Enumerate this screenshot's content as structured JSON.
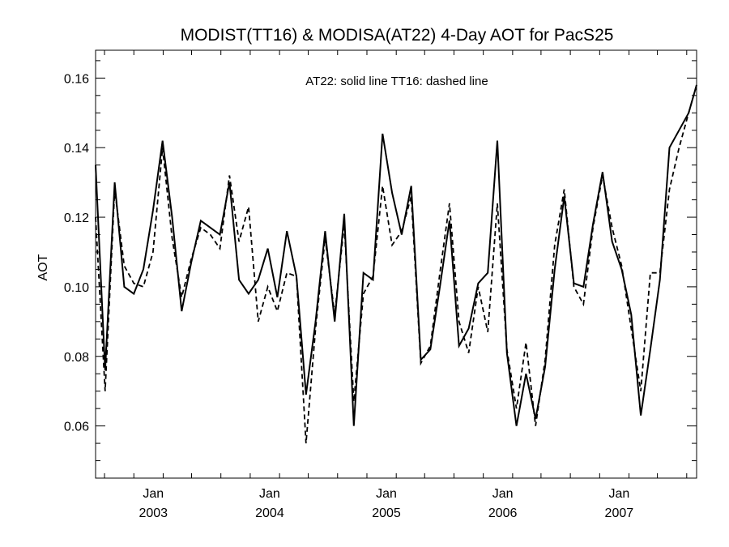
{
  "chart_data": {
    "type": "line",
    "title": "MODIST(TT16) & MODISA(AT22) 4-Day AOT for PacS25",
    "ylabel": "AOT",
    "xlabel": "",
    "annotation": "AT22: solid line   TT16: dashed line",
    "ylim": [
      0.045,
      0.168
    ],
    "xlim": [
      "2002-07-04",
      "2007-09-01"
    ],
    "y_ticks": [
      {
        "value": 0.06,
        "label": "0.06"
      },
      {
        "value": 0.08,
        "label": "0.08"
      },
      {
        "value": 0.1,
        "label": "0.10"
      },
      {
        "value": 0.12,
        "label": "0.12"
      },
      {
        "value": 0.14,
        "label": "0.14"
      },
      {
        "value": 0.16,
        "label": "0.16"
      }
    ],
    "x_ticks": [
      {
        "date": "2003-01-01",
        "month": "Jan",
        "year": "2003"
      },
      {
        "date": "2004-01-01",
        "month": "Jan",
        "year": "2004"
      },
      {
        "date": "2005-01-01",
        "month": "Jan",
        "year": "2005"
      },
      {
        "date": "2006-01-01",
        "month": "Jan",
        "year": "2006"
      },
      {
        "date": "2007-01-01",
        "month": "Jan",
        "year": "2007"
      }
    ],
    "series": [
      {
        "name": "AT22",
        "style": "solid",
        "color": "#000000",
        "x": [
          "2002-07-04",
          "2002-08-03",
          "2002-09-02",
          "2002-10-02",
          "2002-11-01",
          "2002-12-01",
          "2002-12-31",
          "2003-01-30",
          "2003-03-01",
          "2003-03-31",
          "2003-04-30",
          "2003-05-30",
          "2003-06-29",
          "2003-07-29",
          "2003-08-28",
          "2003-09-27",
          "2003-10-27",
          "2003-11-26",
          "2003-12-26",
          "2004-01-25",
          "2004-02-24",
          "2004-03-25",
          "2004-04-24",
          "2004-05-24",
          "2004-06-23",
          "2004-07-23",
          "2004-08-22",
          "2004-09-21",
          "2004-10-21",
          "2004-11-20",
          "2004-12-20",
          "2005-01-19",
          "2005-02-18",
          "2005-03-20",
          "2005-04-19",
          "2005-05-19",
          "2005-06-18",
          "2005-07-18",
          "2005-08-17",
          "2005-09-16",
          "2005-10-16",
          "2005-11-15",
          "2005-12-15",
          "2006-01-14",
          "2006-02-13",
          "2006-03-15",
          "2006-04-14",
          "2006-05-14",
          "2006-06-13",
          "2006-07-13",
          "2006-08-12",
          "2006-09-11",
          "2006-10-11",
          "2006-11-10",
          "2006-12-10",
          "2007-01-09",
          "2007-02-08",
          "2007-03-10",
          "2007-04-09",
          "2007-05-09",
          "2007-06-08",
          "2007-07-08",
          "2007-08-07",
          "2007-09-01"
        ],
        "values": [
          0.135,
          0.076,
          0.13,
          0.1,
          0.098,
          0.105,
          0.122,
          0.142,
          0.12,
          0.093,
          0.107,
          0.119,
          0.117,
          0.115,
          0.13,
          0.102,
          0.098,
          0.102,
          0.111,
          0.097,
          0.116,
          0.103,
          0.069,
          0.09,
          0.116,
          0.09,
          0.121,
          0.06,
          0.104,
          0.102,
          0.144,
          0.127,
          0.115,
          0.129,
          0.079,
          0.082,
          0.1,
          0.119,
          0.083,
          0.088,
          0.101,
          0.104,
          0.142,
          0.081,
          0.06,
          0.075,
          0.062,
          0.077,
          0.105,
          0.126,
          0.101,
          0.1,
          0.118,
          0.133,
          0.113,
          0.105,
          0.092,
          0.063,
          0.082,
          0.102,
          0.14,
          0.145,
          0.15,
          0.158
        ]
      },
      {
        "name": "TT16",
        "style": "dashed",
        "color": "#000000",
        "x": [
          "2002-07-04",
          "2002-08-03",
          "2002-09-02",
          "2002-10-02",
          "2002-11-01",
          "2002-12-01",
          "2002-12-31",
          "2003-01-30",
          "2003-03-01",
          "2003-03-31",
          "2003-04-30",
          "2003-05-30",
          "2003-06-29",
          "2003-07-29",
          "2003-08-28",
          "2003-09-27",
          "2003-10-27",
          "2003-11-26",
          "2003-12-26",
          "2004-01-25",
          "2004-02-24",
          "2004-03-25",
          "2004-04-24",
          "2004-05-24",
          "2004-06-23",
          "2004-07-23",
          "2004-08-22",
          "2004-09-21",
          "2004-10-21",
          "2004-11-20",
          "2004-12-20",
          "2005-01-19",
          "2005-02-18",
          "2005-03-20",
          "2005-04-19",
          "2005-05-19",
          "2005-06-18",
          "2005-07-18",
          "2005-08-17",
          "2005-09-16",
          "2005-10-16",
          "2005-11-15",
          "2005-12-15",
          "2006-01-14",
          "2006-02-13",
          "2006-03-15",
          "2006-04-14",
          "2006-05-14",
          "2006-06-13",
          "2006-07-13",
          "2006-08-12",
          "2006-09-11",
          "2006-10-11",
          "2006-11-10",
          "2006-12-10",
          "2007-01-09",
          "2007-02-08",
          "2007-03-10",
          "2007-04-09",
          "2007-05-09",
          "2007-06-08",
          "2007-07-08",
          "2007-08-07",
          "2007-09-01"
        ],
        "values": [
          0.12,
          0.07,
          0.128,
          0.106,
          0.101,
          0.1,
          0.11,
          0.14,
          0.114,
          0.097,
          0.108,
          0.117,
          0.115,
          0.111,
          0.132,
          0.113,
          0.123,
          0.09,
          0.1,
          0.093,
          0.104,
          0.103,
          0.055,
          0.088,
          0.114,
          0.092,
          0.118,
          0.067,
          0.098,
          0.103,
          0.129,
          0.112,
          0.116,
          0.126,
          0.078,
          0.083,
          0.104,
          0.124,
          0.09,
          0.081,
          0.1,
          0.087,
          0.124,
          0.082,
          0.065,
          0.084,
          0.06,
          0.079,
          0.112,
          0.128,
          0.1,
          0.095,
          0.117,
          0.132,
          0.117,
          0.106,
          0.088,
          0.07,
          0.104,
          0.104,
          0.128,
          0.14,
          0.15,
          0.158
        ]
      }
    ]
  }
}
